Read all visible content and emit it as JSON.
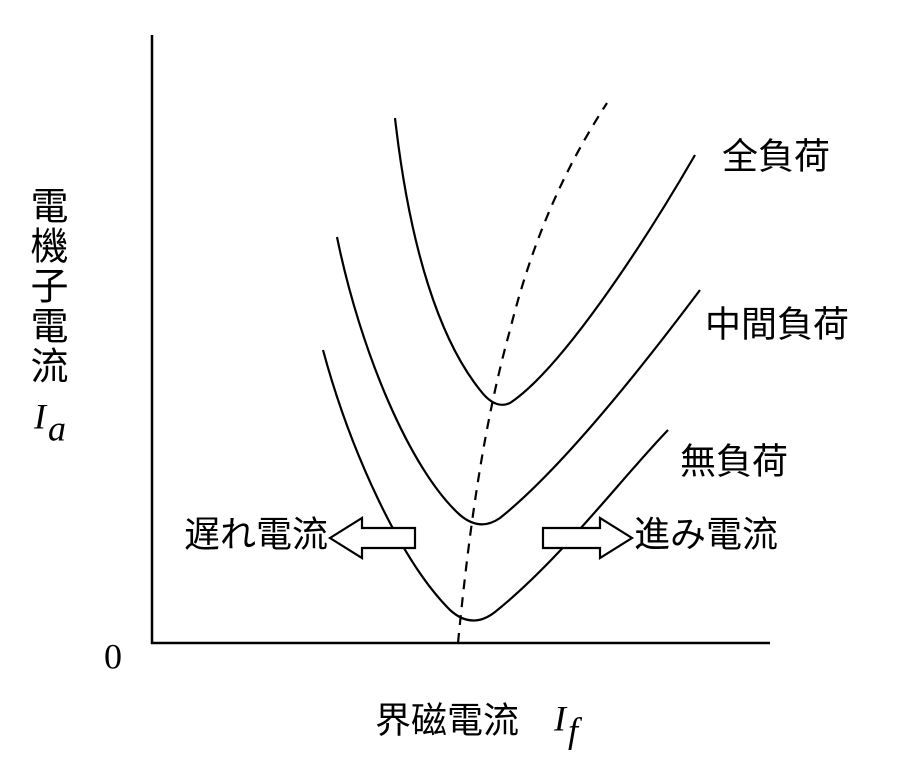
{
  "axes": {
    "y_label": "電機子電流",
    "y_symbol": "I",
    "y_symbol_sub": "a",
    "origin": "0",
    "x_label": "界磁電流",
    "x_symbol": "I",
    "x_symbol_sub": "f"
  },
  "curves": [
    {
      "label": "全負荷"
    },
    {
      "label": "中間負荷"
    },
    {
      "label": "無負荷"
    }
  ],
  "regions": {
    "lagging": "遅れ電流",
    "leading": "進み電流"
  }
}
